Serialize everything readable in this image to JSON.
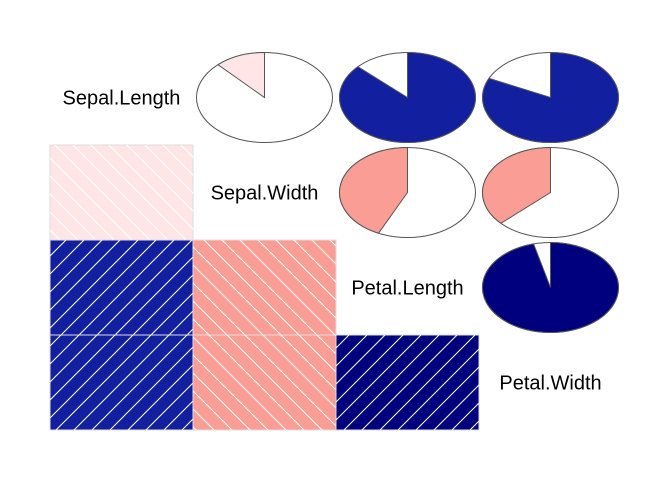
{
  "chart_data": {
    "type": "corrgram",
    "variables": [
      "Sepal.Length",
      "Sepal.Width",
      "Petal.Length",
      "Petal.Width"
    ],
    "lower_panel": "shade",
    "upper_panel": "pie",
    "correlations": [
      [
        1.0,
        -0.12,
        0.87,
        0.82
      ],
      [
        -0.12,
        1.0,
        -0.43,
        -0.37
      ],
      [
        0.87,
        -0.43,
        1.0,
        0.96
      ],
      [
        0.82,
        -0.37,
        0.96,
        1.0
      ]
    ],
    "colors": {
      "weak_negative": "#FFE5E5",
      "moderate_negative": "#FA9D94",
      "strong_positive": "#00007F",
      "positive": "#1220A0",
      "background": "#FFFFFF",
      "pie_outline": "#555555",
      "hatch": "#FFFFFF"
    }
  }
}
